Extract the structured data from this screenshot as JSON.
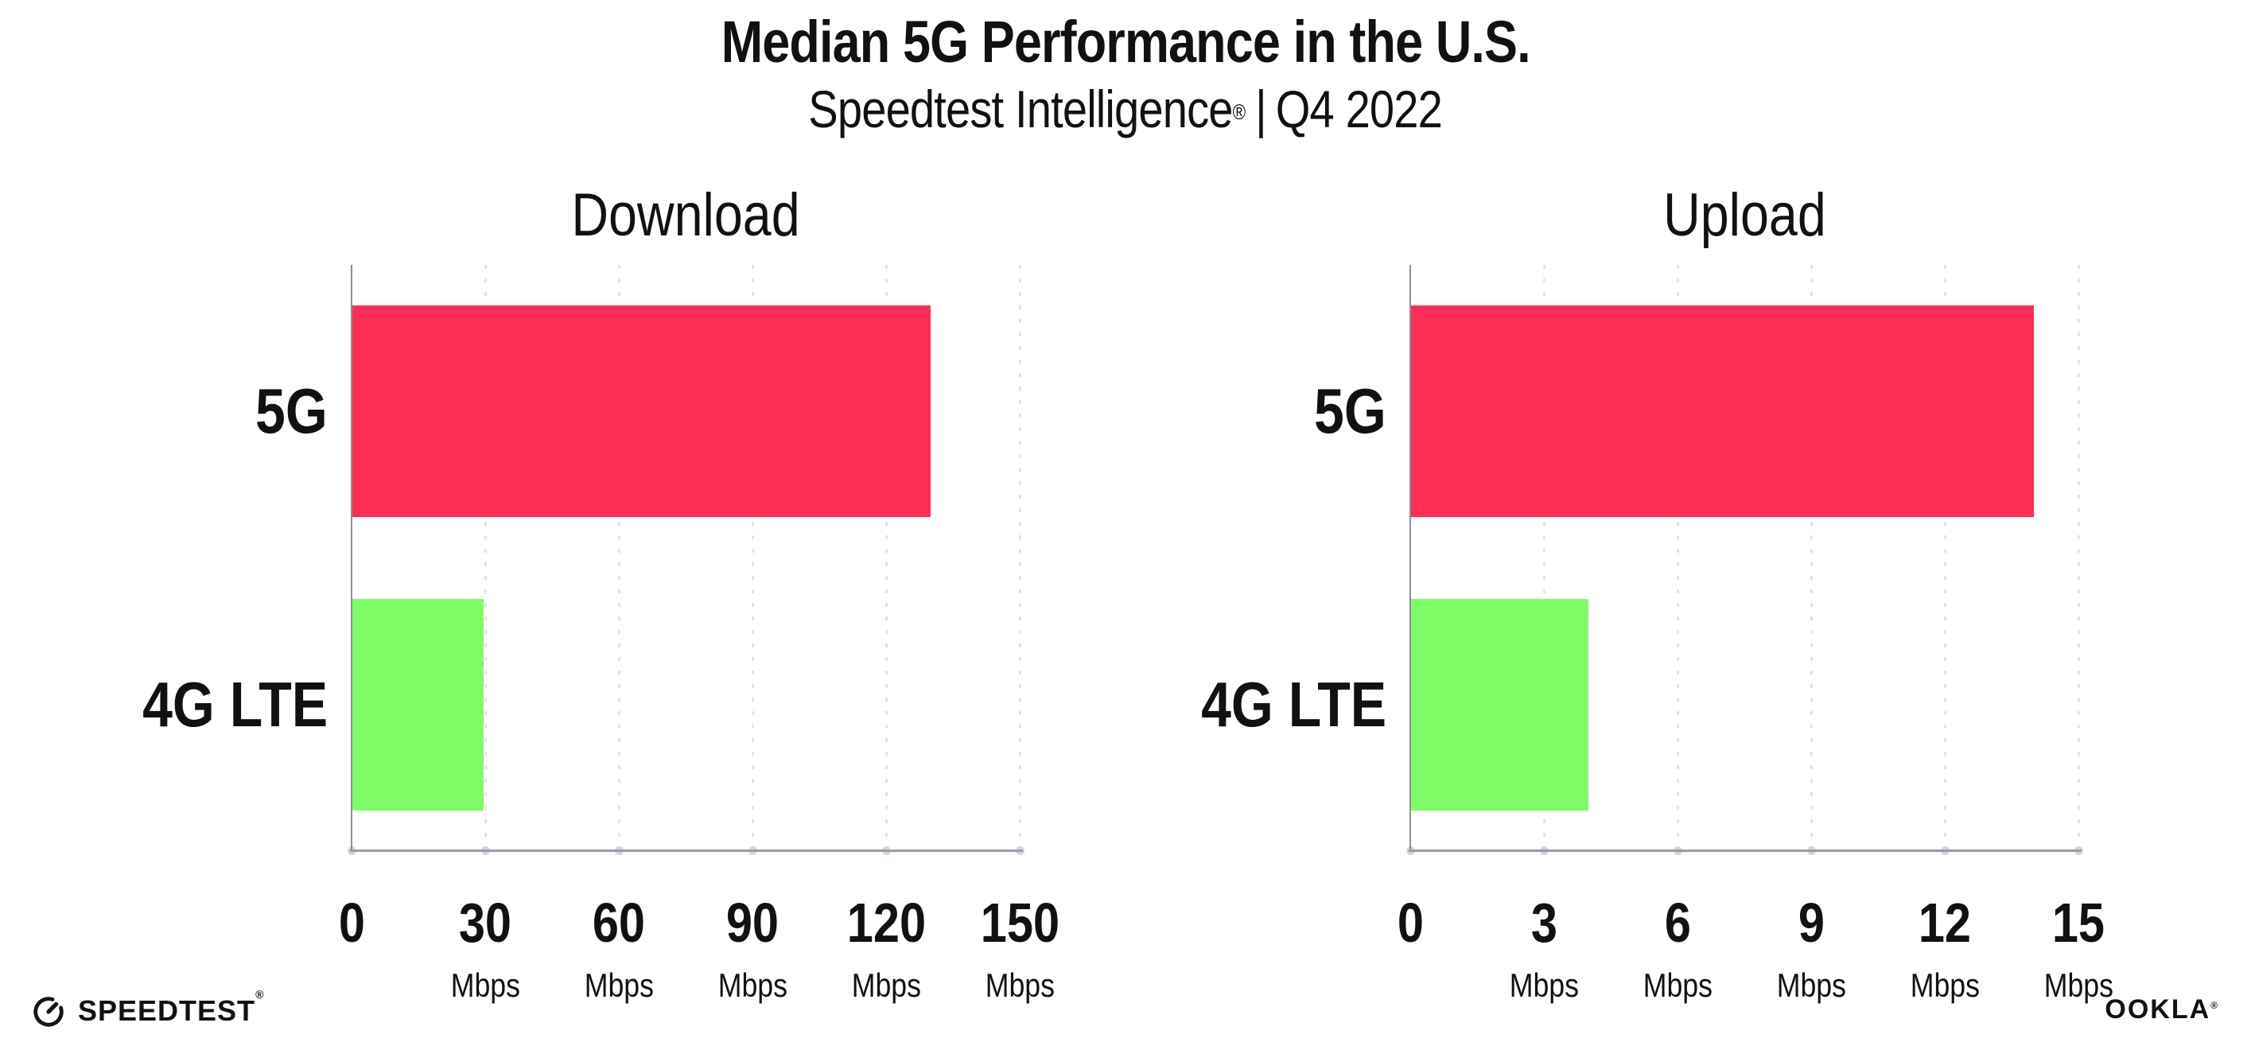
{
  "header": {
    "title": "Median 5G Performance in the U.S.",
    "subtitle": {
      "product": "Speedtest Intelligence",
      "reg": "®",
      "divider": "|",
      "period": "Q4 2022"
    }
  },
  "chart_data": [
    {
      "type": "bar",
      "orientation": "horizontal",
      "title": "Download",
      "categories": [
        "5G",
        "4G LTE"
      ],
      "values": [
        130,
        29.7
      ],
      "unit": "Mbps",
      "xlim": [
        0,
        150
      ],
      "xticks": [
        0,
        30,
        60,
        90,
        120,
        150
      ],
      "bar_colors": [
        "#FD2D56",
        "#7EFC66"
      ],
      "grid": "dotted-vertical",
      "legend": "none"
    },
    {
      "type": "bar",
      "orientation": "horizontal",
      "title": "Upload",
      "categories": [
        "5G",
        "4G LTE"
      ],
      "values": [
        14,
        4
      ],
      "unit": "Mbps",
      "xlim": [
        0,
        15
      ],
      "xticks": [
        0,
        3,
        6,
        9,
        12,
        15
      ],
      "bar_colors": [
        "#FD2D56",
        "#7EFC66"
      ],
      "grid": "dotted-vertical",
      "legend": "none"
    }
  ],
  "footer": {
    "speedtest_logo_text": "SPEEDTEST",
    "speedtest_reg": "®",
    "ookla_logo_text": "OOKLA",
    "ookla_reg": "®"
  },
  "colors": {
    "bar_5g": "#FD2D56",
    "bar_4g_lte": "#7EFC66",
    "grid": "#e2e3ec",
    "axis": "#9b9ba3",
    "text": "#111111",
    "background": "#ffffff"
  }
}
